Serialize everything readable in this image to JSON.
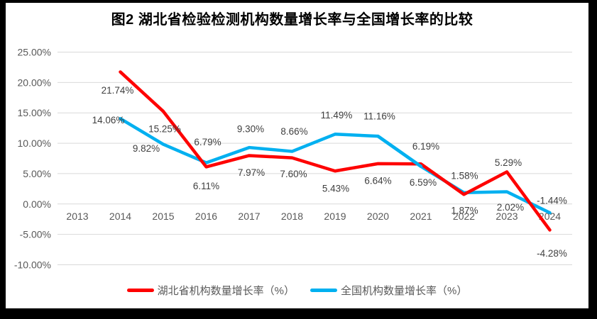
{
  "title": "图2  湖北省检验检测机构数量增长率与全国增长率的比较",
  "colors": {
    "frame": "#000000",
    "background": "#ffffff",
    "gridline": "#d9d9d9",
    "axis_text": "#595959",
    "data_label_text": "#3f3f3f",
    "title_text": "#000000",
    "legend_text": "#595959",
    "hubei_line": "#fe0000",
    "national_line": "#00b0f0"
  },
  "chart_data": {
    "type": "line",
    "x": [
      "2013",
      "2014",
      "2015",
      "2016",
      "2017",
      "2018",
      "2019",
      "2020",
      "2021",
      "2022",
      "2023",
      "2024"
    ],
    "series": [
      {
        "name": "湖北省机构数量增长率（%）",
        "color": "#fe0000",
        "values": [
          null,
          21.74,
          15.25,
          6.11,
          7.97,
          7.6,
          5.43,
          6.64,
          6.59,
          1.58,
          5.29,
          -4.28
        ],
        "labels": [
          null,
          "21.74%",
          "15.25%",
          "6.11%",
          "7.97%",
          "7.60%",
          "5.43%",
          "6.64%",
          "6.59%",
          "1.58%",
          "5.29%",
          "-4.28%"
        ],
        "label_offsets": [
          null,
          [
            -4,
            26
          ],
          [
            2,
            25
          ],
          [
            0,
            27
          ],
          [
            3,
            24
          ],
          [
            2,
            23
          ],
          [
            1,
            25
          ],
          [
            0,
            24
          ],
          [
            3,
            26
          ],
          [
            1,
            -26
          ],
          [
            2,
            -13
          ],
          [
            3,
            33
          ]
        ]
      },
      {
        "name": "全国机构数量增长率（%）",
        "color": "#00b0f0",
        "values": [
          null,
          14.06,
          9.82,
          6.79,
          9.3,
          8.66,
          11.49,
          11.16,
          6.19,
          1.87,
          2.02,
          -1.44
        ],
        "labels": [
          null,
          "14.06%",
          "9.82%",
          "6.79%",
          "9.30%",
          "8.66%",
          "11.49%",
          "11.16%",
          "6.19%",
          "1.87%",
          "2.02%",
          "-1.44%"
        ],
        "label_offsets": [
          null,
          [
            -17,
            2
          ],
          [
            -24,
            6
          ],
          [
            2,
            -29
          ],
          [
            2,
            -26
          ],
          [
            3,
            -28
          ],
          [
            2,
            -27
          ],
          [
            2,
            -28
          ],
          [
            7,
            -28
          ],
          [
            1,
            25
          ],
          [
            5,
            22
          ],
          [
            3,
            -17
          ]
        ]
      }
    ],
    "ylim": [
      -10,
      25
    ],
    "ytick_step": 5,
    "ytick_labels": [
      "25.00%",
      "20.00%",
      "15.00%",
      "10.00%",
      "5.00%",
      "0.00%",
      "-5.00%",
      "-10.00%"
    ],
    "grid": "horizontal",
    "legend_position": "bottom",
    "data_labels": true
  }
}
